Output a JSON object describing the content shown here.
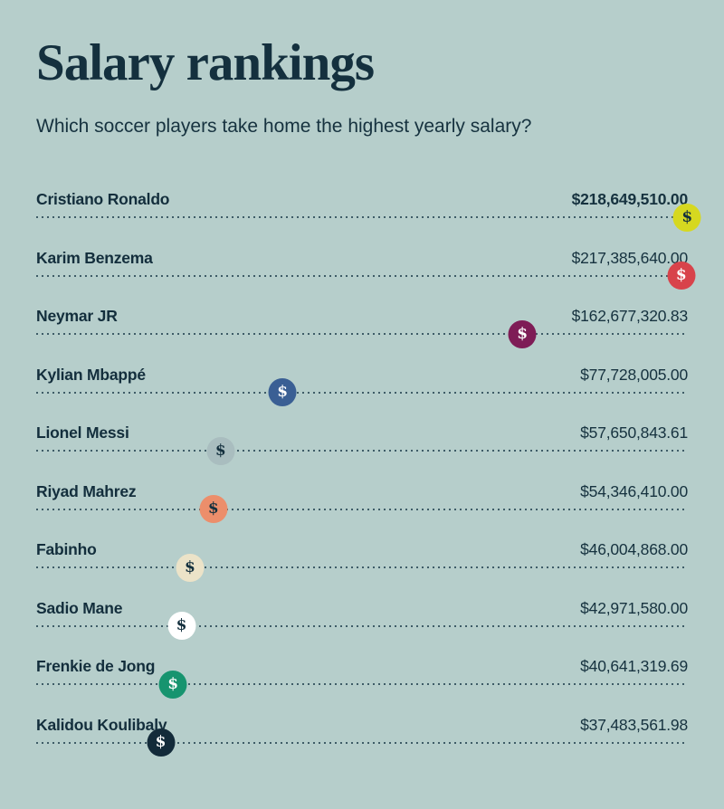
{
  "header": {
    "title": "Salary rankings",
    "subtitle": "Which soccer players take home the highest yearly salary?"
  },
  "colors": {
    "background": "#b6cecb",
    "title_text": "#14303e",
    "body_text": "#16323f",
    "dotted_line": "#3e5c67"
  },
  "players": [
    {
      "name": "Cristiano Ronaldo",
      "salary_label": "$218,649,510.00",
      "value_bold": true,
      "position_pct": 99.9,
      "circle_color": "#d6d820",
      "dollar_color": "#14303e"
    },
    {
      "name": "Karim Benzema",
      "salary_label": "$217,385,640.00",
      "value_bold": false,
      "position_pct": 99.0,
      "circle_color": "#d8434b",
      "dollar_color": "#ffffff"
    },
    {
      "name": "Neymar JR",
      "salary_label": "$162,677,320.83",
      "value_bold": false,
      "position_pct": 74.6,
      "circle_color": "#7e1c56",
      "dollar_color": "#ffffff"
    },
    {
      "name": "Kylian Mbappé",
      "salary_label": "$77,728,005.00",
      "value_bold": false,
      "position_pct": 37.8,
      "circle_color": "#3a5f94",
      "dollar_color": "#ffffff"
    },
    {
      "name": "Lionel Messi",
      "salary_label": "$57,650,843.61",
      "value_bold": false,
      "position_pct": 28.3,
      "circle_color": "#a9bdbf",
      "dollar_color": "#14303e"
    },
    {
      "name": "Riyad Mahrez",
      "salary_label": "$54,346,410.00",
      "value_bold": false,
      "position_pct": 27.2,
      "circle_color": "#ec8e6b",
      "dollar_color": "#14303e"
    },
    {
      "name": "Fabinho",
      "salary_label": "$46,004,868.00",
      "value_bold": false,
      "position_pct": 23.6,
      "circle_color": "#ece3c8",
      "dollar_color": "#14303e"
    },
    {
      "name": "Sadio Mane",
      "salary_label": "$42,971,580.00",
      "value_bold": false,
      "position_pct": 22.3,
      "circle_color": "#ffffff",
      "dollar_color": "#14303e"
    },
    {
      "name": "Frenkie de Jong",
      "salary_label": "$40,641,319.69",
      "value_bold": false,
      "position_pct": 21.0,
      "circle_color": "#17946f",
      "dollar_color": "#ffffff"
    },
    {
      "name": "Kalidou Koulibaly",
      "salary_label": "$37,483,561.98",
      "value_bold": false,
      "position_pct": 19.1,
      "circle_color": "#132b3a",
      "dollar_color": "#ffffff"
    }
  ],
  "marker_glyph": "$",
  "chart_data": {
    "type": "dot-plot",
    "title": "Salary rankings",
    "subtitle": "Which soccer players take home the highest yearly salary?",
    "categories": [
      "Cristiano Ronaldo",
      "Karim Benzema",
      "Neymar JR",
      "Kylian Mbappé",
      "Lionel Messi",
      "Riyad Mahrez",
      "Fabinho",
      "Sadio Mane",
      "Frenkie de Jong",
      "Kalidou Koulibaly"
    ],
    "values": [
      218649510.0,
      217385640.0,
      162677320.83,
      77728005.0,
      57650843.61,
      54346410.0,
      46004868.0,
      42971580.0,
      40641319.69,
      37483561.98
    ],
    "value_labels": [
      "$218,649,510.00",
      "$217,385,640.00",
      "$162,677,320.83",
      "$77,728,005.00",
      "$57,650,843.61",
      "$54,346,410.00",
      "$46,004,868.00",
      "$42,971,580.00",
      "$40,641,319.69",
      "$37,483,561.98"
    ],
    "xlim": [
      0,
      218649510
    ],
    "marker": "$",
    "grid": "dotted-guides-per-row",
    "legend": "none",
    "sort": "descending-by-value"
  }
}
